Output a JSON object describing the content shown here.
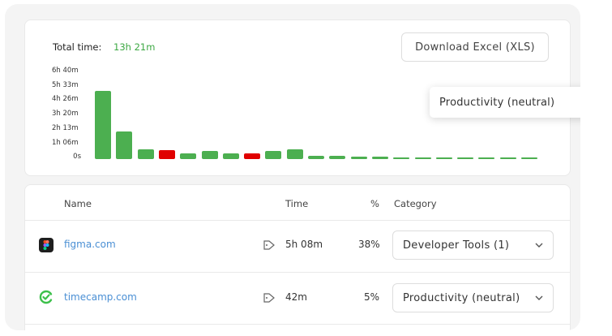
{
  "summary": {
    "total_time_label": "Total time:",
    "total_time_value": "13h 21m"
  },
  "toolbar": {
    "download_label": "Download Excel (XLS)"
  },
  "tooltip": {
    "text": "Productivity (neutral)"
  },
  "colors": {
    "productive": "#4caf50",
    "unproductive": "#e00000",
    "accent_text": "#3ca843",
    "link": "#4a8fd4"
  },
  "chart_data": {
    "type": "bar",
    "y_ticks": [
      "6h 40m",
      "5h 33m",
      "4h 26m",
      "3h 20m",
      "2h 13m",
      "1h 06m",
      "0s"
    ],
    "ylim_minutes": [
      0,
      400
    ],
    "series": [
      {
        "values_minutes": [
          308,
          125,
          45,
          40,
          25,
          35,
          25,
          25,
          35,
          45,
          15,
          15,
          12,
          12,
          8,
          4,
          6,
          4,
          4,
          4,
          4
        ],
        "status": [
          "productive",
          "productive",
          "productive",
          "unproductive",
          "productive",
          "productive",
          "productive",
          "unproductive",
          "productive",
          "productive",
          "productive",
          "productive",
          "productive",
          "productive",
          "productive",
          "productive",
          "productive",
          "productive",
          "productive",
          "productive",
          "productive"
        ]
      }
    ]
  },
  "table": {
    "headers": {
      "name": "Name",
      "time": "Time",
      "percent": "%",
      "category": "Category"
    },
    "rows": [
      {
        "site": "figma.com",
        "icon": "figma-icon",
        "time": "5h 08m",
        "percent": "38%",
        "category": "Developer Tools (1)"
      },
      {
        "site": "timecamp.com",
        "icon": "timecamp-icon",
        "time": "42m",
        "percent": "5%",
        "category": "Productivity (neutral)"
      }
    ]
  }
}
